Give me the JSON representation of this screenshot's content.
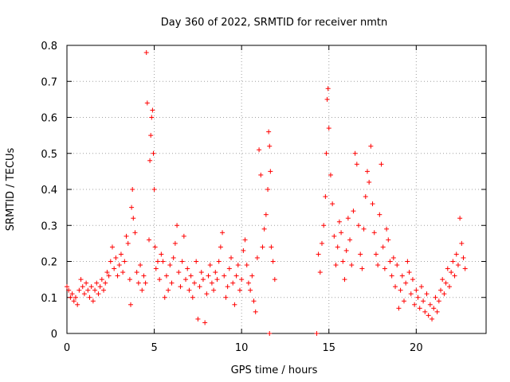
{
  "chart_data": {
    "type": "scatter",
    "title": "Day 360 of 2022, SRMTID for receiver nmtn",
    "xlabel": "GPS time / hours",
    "ylabel": "SRMTID / TECUs",
    "xlim": [
      0,
      24
    ],
    "ylim": [
      0,
      0.8
    ],
    "xticks": [
      0,
      5,
      10,
      15,
      20
    ],
    "xtick_labels": [
      "0",
      "5",
      "10",
      "15",
      "20"
    ],
    "yticks": [
      0,
      0.1,
      0.2,
      0.3,
      0.4,
      0.5,
      0.6,
      0.7,
      0.8
    ],
    "ytick_labels": [
      "0",
      "0.1",
      "0.2",
      "0.3",
      "0.4",
      "0.5",
      "0.6",
      "0.7",
      "0.8"
    ],
    "grid": true,
    "marker": "+",
    "color": "#ff0000",
    "series": [
      {
        "name": "SRMTID",
        "points": [
          [
            0.0,
            0.13
          ],
          [
            0.1,
            0.12
          ],
          [
            0.2,
            0.1
          ],
          [
            0.3,
            0.11
          ],
          [
            0.4,
            0.09
          ],
          [
            0.5,
            0.1
          ],
          [
            0.6,
            0.08
          ],
          [
            0.7,
            0.12
          ],
          [
            0.8,
            0.15
          ],
          [
            0.9,
            0.13
          ],
          [
            1.0,
            0.11
          ],
          [
            1.1,
            0.14
          ],
          [
            1.2,
            0.12
          ],
          [
            1.3,
            0.1
          ],
          [
            1.4,
            0.13
          ],
          [
            1.5,
            0.09
          ],
          [
            1.6,
            0.12
          ],
          [
            1.7,
            0.14
          ],
          [
            1.8,
            0.11
          ],
          [
            1.9,
            0.13
          ],
          [
            2.0,
            0.15
          ],
          [
            2.1,
            0.12
          ],
          [
            2.2,
            0.14
          ],
          [
            2.3,
            0.17
          ],
          [
            2.4,
            0.16
          ],
          [
            2.5,
            0.2
          ],
          [
            2.6,
            0.24
          ],
          [
            2.7,
            0.18
          ],
          [
            2.8,
            0.21
          ],
          [
            2.9,
            0.16
          ],
          [
            3.0,
            0.19
          ],
          [
            3.1,
            0.22
          ],
          [
            3.2,
            0.17
          ],
          [
            3.3,
            0.2
          ],
          [
            3.4,
            0.27
          ],
          [
            3.5,
            0.25
          ],
          [
            3.6,
            0.15
          ],
          [
            3.65,
            0.08
          ],
          [
            3.7,
            0.35
          ],
          [
            3.75,
            0.4
          ],
          [
            3.8,
            0.32
          ],
          [
            3.9,
            0.28
          ],
          [
            4.0,
            0.17
          ],
          [
            4.1,
            0.14
          ],
          [
            4.2,
            0.19
          ],
          [
            4.3,
            0.12
          ],
          [
            4.4,
            0.16
          ],
          [
            4.5,
            0.14
          ],
          [
            4.55,
            0.78
          ],
          [
            4.6,
            0.64
          ],
          [
            4.7,
            0.26
          ],
          [
            4.75,
            0.48
          ],
          [
            4.8,
            0.55
          ],
          [
            4.85,
            0.6
          ],
          [
            4.9,
            0.62
          ],
          [
            4.95,
            0.5
          ],
          [
            5.0,
            0.4
          ],
          [
            5.05,
            0.24
          ],
          [
            5.1,
            0.18
          ],
          [
            5.2,
            0.2
          ],
          [
            5.3,
            0.15
          ],
          [
            5.4,
            0.22
          ],
          [
            5.5,
            0.2
          ],
          [
            5.6,
            0.1
          ],
          [
            5.7,
            0.16
          ],
          [
            5.8,
            0.12
          ],
          [
            5.9,
            0.19
          ],
          [
            6.0,
            0.14
          ],
          [
            6.1,
            0.21
          ],
          [
            6.2,
            0.25
          ],
          [
            6.3,
            0.3
          ],
          [
            6.4,
            0.17
          ],
          [
            6.5,
            0.13
          ],
          [
            6.6,
            0.2
          ],
          [
            6.7,
            0.27
          ],
          [
            6.8,
            0.15
          ],
          [
            6.9,
            0.18
          ],
          [
            7.0,
            0.12
          ],
          [
            7.1,
            0.16
          ],
          [
            7.2,
            0.1
          ],
          [
            7.3,
            0.14
          ],
          [
            7.4,
            0.2
          ],
          [
            7.5,
            0.04
          ],
          [
            7.6,
            0.13
          ],
          [
            7.7,
            0.17
          ],
          [
            7.8,
            0.15
          ],
          [
            7.9,
            0.03
          ],
          [
            8.0,
            0.11
          ],
          [
            8.1,
            0.16
          ],
          [
            8.2,
            0.19
          ],
          [
            8.3,
            0.14
          ],
          [
            8.4,
            0.12
          ],
          [
            8.5,
            0.17
          ],
          [
            8.6,
            0.15
          ],
          [
            8.7,
            0.2
          ],
          [
            8.8,
            0.24
          ],
          [
            8.9,
            0.28
          ],
          [
            9.0,
            0.16
          ],
          [
            9.1,
            0.1
          ],
          [
            9.2,
            0.13
          ],
          [
            9.3,
            0.18
          ],
          [
            9.4,
            0.21
          ],
          [
            9.5,
            0.14
          ],
          [
            9.6,
            0.08
          ],
          [
            9.7,
            0.16
          ],
          [
            9.8,
            0.19
          ],
          [
            9.9,
            0.12
          ],
          [
            10.0,
            0.15
          ],
          [
            10.1,
            0.23
          ],
          [
            10.2,
            0.26
          ],
          [
            10.3,
            0.19
          ],
          [
            10.4,
            0.14
          ],
          [
            10.5,
            0.12
          ],
          [
            10.6,
            0.16
          ],
          [
            10.7,
            0.09
          ],
          [
            10.8,
            0.06
          ],
          [
            10.9,
            0.21
          ],
          [
            11.0,
            0.51
          ],
          [
            11.1,
            0.44
          ],
          [
            11.2,
            0.24
          ],
          [
            11.3,
            0.29
          ],
          [
            11.4,
            0.33
          ],
          [
            11.5,
            0.4
          ],
          [
            11.55,
            0.56
          ],
          [
            11.6,
            0.52
          ],
          [
            11.65,
            0.45
          ],
          [
            11.7,
            0.24
          ],
          [
            11.8,
            0.2
          ],
          [
            11.9,
            0.15
          ],
          [
            11.6,
            0.0
          ],
          [
            14.3,
            0.0
          ],
          [
            14.4,
            0.22
          ],
          [
            14.5,
            0.17
          ],
          [
            14.6,
            0.25
          ],
          [
            14.7,
            0.3
          ],
          [
            14.8,
            0.38
          ],
          [
            14.85,
            0.5
          ],
          [
            14.9,
            0.65
          ],
          [
            14.95,
            0.68
          ],
          [
            15.0,
            0.57
          ],
          [
            15.1,
            0.44
          ],
          [
            15.2,
            0.36
          ],
          [
            15.3,
            0.27
          ],
          [
            15.4,
            0.19
          ],
          [
            15.5,
            0.24
          ],
          [
            15.6,
            0.31
          ],
          [
            15.7,
            0.28
          ],
          [
            15.8,
            0.2
          ],
          [
            15.9,
            0.15
          ],
          [
            16.0,
            0.23
          ],
          [
            16.1,
            0.32
          ],
          [
            16.2,
            0.26
          ],
          [
            16.3,
            0.19
          ],
          [
            16.4,
            0.34
          ],
          [
            16.5,
            0.5
          ],
          [
            16.6,
            0.47
          ],
          [
            16.7,
            0.3
          ],
          [
            16.8,
            0.22
          ],
          [
            16.9,
            0.18
          ],
          [
            17.0,
            0.29
          ],
          [
            17.1,
            0.38
          ],
          [
            17.2,
            0.45
          ],
          [
            17.3,
            0.42
          ],
          [
            17.4,
            0.52
          ],
          [
            17.5,
            0.36
          ],
          [
            17.6,
            0.28
          ],
          [
            17.7,
            0.22
          ],
          [
            17.8,
            0.19
          ],
          [
            17.9,
            0.33
          ],
          [
            18.0,
            0.47
          ],
          [
            18.1,
            0.24
          ],
          [
            18.2,
            0.18
          ],
          [
            18.3,
            0.29
          ],
          [
            18.4,
            0.26
          ],
          [
            18.5,
            0.2
          ],
          [
            18.6,
            0.16
          ],
          [
            18.7,
            0.21
          ],
          [
            18.8,
            0.13
          ],
          [
            18.9,
            0.19
          ],
          [
            19.0,
            0.07
          ],
          [
            19.1,
            0.12
          ],
          [
            19.2,
            0.16
          ],
          [
            19.3,
            0.09
          ],
          [
            19.4,
            0.14
          ],
          [
            19.5,
            0.2
          ],
          [
            19.6,
            0.17
          ],
          [
            19.7,
            0.11
          ],
          [
            19.8,
            0.15
          ],
          [
            19.9,
            0.08
          ],
          [
            20.0,
            0.12
          ],
          [
            20.1,
            0.1
          ],
          [
            20.2,
            0.07
          ],
          [
            20.3,
            0.13
          ],
          [
            20.4,
            0.09
          ],
          [
            20.5,
            0.06
          ],
          [
            20.6,
            0.11
          ],
          [
            20.7,
            0.05
          ],
          [
            20.8,
            0.08
          ],
          [
            20.9,
            0.04
          ],
          [
            21.0,
            0.07
          ],
          [
            21.1,
            0.1
          ],
          [
            21.2,
            0.06
          ],
          [
            21.3,
            0.09
          ],
          [
            21.4,
            0.12
          ],
          [
            21.5,
            0.15
          ],
          [
            21.6,
            0.11
          ],
          [
            21.7,
            0.14
          ],
          [
            21.8,
            0.18
          ],
          [
            21.9,
            0.13
          ],
          [
            22.0,
            0.17
          ],
          [
            22.1,
            0.2
          ],
          [
            22.2,
            0.16
          ],
          [
            22.3,
            0.22
          ],
          [
            22.4,
            0.19
          ],
          [
            22.5,
            0.32
          ],
          [
            22.6,
            0.25
          ],
          [
            22.7,
            0.21
          ],
          [
            22.8,
            0.18
          ]
        ]
      }
    ]
  }
}
